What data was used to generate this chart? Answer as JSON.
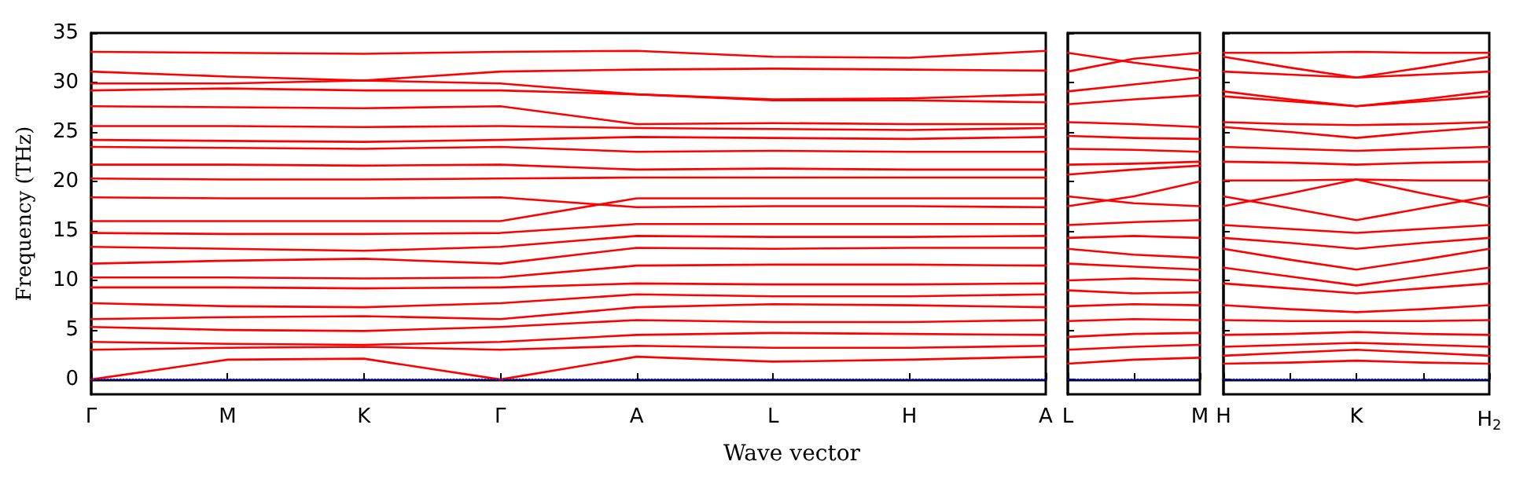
{
  "chart_data": [
    {
      "type": "line",
      "ylabel": "Frequency (THz)",
      "xlabel": "Wave vector",
      "marker": "none",
      "categories": [
        "Γ",
        "M",
        "K",
        "Γ",
        "A",
        "L",
        "H",
        "A"
      ],
      "ylim": [
        -1.5,
        35
      ],
      "yticks": [
        0,
        5,
        10,
        15,
        20,
        25,
        30,
        35
      ],
      "ref_lines": [
        {
          "axis": "y",
          "value": 0,
          "color": "#0000ff",
          "line_style": "dotted"
        }
      ],
      "series": [
        {
          "color": "#ff0000",
          "values": [
            33.1,
            33.0,
            32.9,
            33.1,
            33.2,
            32.6,
            32.5,
            33.2
          ]
        },
        {
          "color": "#ff0000",
          "values": [
            31.1,
            30.6,
            30.2,
            31.1,
            31.3,
            31.4,
            31.3,
            31.2
          ]
        },
        {
          "color": "#ff0000",
          "values": [
            29.9,
            29.9,
            30.2,
            29.9,
            28.8,
            28.3,
            28.4,
            28.8
          ]
        },
        {
          "color": "#ff0000",
          "values": [
            29.2,
            29.4,
            29.2,
            29.2,
            28.8,
            28.2,
            28.2,
            28.0
          ]
        },
        {
          "color": "#ff0000",
          "values": [
            27.6,
            27.5,
            27.4,
            27.6,
            25.8,
            25.9,
            25.8,
            25.8
          ]
        },
        {
          "color": "#ff0000",
          "values": [
            25.6,
            25.6,
            25.5,
            25.6,
            25.4,
            25.3,
            25.2,
            25.4
          ]
        },
        {
          "color": "#ff0000",
          "values": [
            24.2,
            24.1,
            24.0,
            24.2,
            24.5,
            24.4,
            24.3,
            24.5
          ]
        },
        {
          "color": "#ff0000",
          "values": [
            23.5,
            23.4,
            23.3,
            23.5,
            23.0,
            23.1,
            23.0,
            23.0
          ]
        },
        {
          "color": "#ff0000",
          "values": [
            21.7,
            21.7,
            21.6,
            21.7,
            21.2,
            21.3,
            21.2,
            21.2
          ]
        },
        {
          "color": "#ff0000",
          "values": [
            20.3,
            20.2,
            20.2,
            20.3,
            20.4,
            20.4,
            20.4,
            20.4
          ]
        },
        {
          "color": "#ff0000",
          "values": [
            18.4,
            18.3,
            18.3,
            18.4,
            17.4,
            17.5,
            17.5,
            17.4
          ]
        },
        {
          "color": "#ff0000",
          "values": [
            16.0,
            16.0,
            16.0,
            16.0,
            18.3,
            18.3,
            18.3,
            18.3
          ]
        },
        {
          "color": "#ff0000",
          "values": [
            14.8,
            14.7,
            14.7,
            14.8,
            15.7,
            15.7,
            15.7,
            15.7
          ]
        },
        {
          "color": "#ff0000",
          "values": [
            13.4,
            13.2,
            13.0,
            13.4,
            14.5,
            14.4,
            14.4,
            14.5
          ]
        },
        {
          "color": "#ff0000",
          "values": [
            11.7,
            12.0,
            12.2,
            11.7,
            13.3,
            13.2,
            13.3,
            13.3
          ]
        },
        {
          "color": "#ff0000",
          "values": [
            10.3,
            10.3,
            10.2,
            10.3,
            11.5,
            11.6,
            11.6,
            11.5
          ]
        },
        {
          "color": "#ff0000",
          "values": [
            9.3,
            9.3,
            9.2,
            9.3,
            9.7,
            9.6,
            9.6,
            9.7
          ]
        },
        {
          "color": "#ff0000",
          "values": [
            7.7,
            7.4,
            7.3,
            7.7,
            8.6,
            8.4,
            8.4,
            8.6
          ]
        },
        {
          "color": "#ff0000",
          "values": [
            6.1,
            6.3,
            6.4,
            6.1,
            7.3,
            7.6,
            7.5,
            7.3
          ]
        },
        {
          "color": "#ff0000",
          "values": [
            5.3,
            5.0,
            4.9,
            5.3,
            6.0,
            5.8,
            5.8,
            6.0
          ]
        },
        {
          "color": "#ff0000",
          "values": [
            3.8,
            3.6,
            3.5,
            3.8,
            4.5,
            4.7,
            4.6,
            4.5
          ]
        },
        {
          "color": "#ff0000",
          "values": [
            3.0,
            3.2,
            3.3,
            3.0,
            3.4,
            3.2,
            3.2,
            3.4
          ]
        },
        {
          "color": "#ff0000",
          "values": [
            0,
            2.0,
            2.1,
            0,
            2.3,
            1.8,
            2.0,
            2.3
          ]
        }
      ]
    },
    {
      "type": "line",
      "marker": "none",
      "tick_labels": "x",
      "categories": [
        "L",
        null,
        "M"
      ],
      "ylim": [
        -1.5,
        35
      ],
      "yticks": [
        0,
        5,
        10,
        15,
        20,
        25,
        30,
        35
      ],
      "ref_lines": [
        {
          "axis": "y",
          "value": 0,
          "color": "#0000ff",
          "line_style": "dotted"
        }
      ],
      "series": [
        {
          "color": "#ff0000",
          "values": [
            33.0,
            32.0,
            31.2
          ]
        },
        {
          "color": "#ff0000",
          "values": [
            31.1,
            32.4,
            33.0
          ]
        },
        {
          "color": "#ff0000",
          "values": [
            29.1,
            29.8,
            30.5
          ]
        },
        {
          "color": "#ff0000",
          "values": [
            27.8,
            28.3,
            28.7
          ]
        },
        {
          "color": "#ff0000",
          "values": [
            26.0,
            25.8,
            25.5
          ]
        },
        {
          "color": "#ff0000",
          "values": [
            24.6,
            24.4,
            24.3
          ]
        },
        {
          "color": "#ff0000",
          "values": [
            23.3,
            23.2,
            23.0
          ]
        },
        {
          "color": "#ff0000",
          "values": [
            21.7,
            21.8,
            22.0
          ]
        },
        {
          "color": "#ff0000",
          "values": [
            20.7,
            21.2,
            21.6
          ]
        },
        {
          "color": "#ff0000",
          "values": [
            17.5,
            18.5,
            20.0
          ]
        },
        {
          "color": "#ff0000",
          "values": [
            18.5,
            17.8,
            17.5
          ]
        },
        {
          "color": "#ff0000",
          "values": [
            15.6,
            15.9,
            16.1
          ]
        },
        {
          "color": "#ff0000",
          "values": [
            14.3,
            14.5,
            14.3
          ]
        },
        {
          "color": "#ff0000",
          "values": [
            13.2,
            12.6,
            12.3
          ]
        },
        {
          "color": "#ff0000",
          "values": [
            11.7,
            11.4,
            11.1
          ]
        },
        {
          "color": "#ff0000",
          "values": [
            10.0,
            10.2,
            10.0
          ]
        },
        {
          "color": "#ff0000",
          "values": [
            9.0,
            8.7,
            8.8
          ]
        },
        {
          "color": "#ff0000",
          "values": [
            7.4,
            7.6,
            7.5
          ]
        },
        {
          "color": "#ff0000",
          "values": [
            5.9,
            6.1,
            6.0
          ]
        },
        {
          "color": "#ff0000",
          "values": [
            4.3,
            4.6,
            4.7
          ]
        },
        {
          "color": "#ff0000",
          "values": [
            3.0,
            3.3,
            3.5
          ]
        },
        {
          "color": "#ff0000",
          "values": [
            1.6,
            2.0,
            2.2
          ]
        }
      ]
    },
    {
      "type": "line",
      "marker": "none",
      "tick_labels": "x",
      "categories": [
        "H",
        null,
        "K",
        null,
        "H$_{2}$"
      ],
      "ylim": [
        -1.5,
        35
      ],
      "yticks": [
        0,
        5,
        10,
        15,
        20,
        25,
        30,
        35
      ],
      "ref_lines": [
        {
          "axis": "y",
          "value": 0,
          "color": "#0000ff",
          "line_style": "dotted"
        }
      ],
      "series": [
        {
          "color": "#ff0000",
          "values": [
            33.0,
            33.0,
            33.1,
            33.0,
            33.0
          ]
        },
        {
          "color": "#ff0000",
          "values": [
            32.6,
            31.5,
            30.5,
            31.5,
            32.6
          ]
        },
        {
          "color": "#ff0000",
          "values": [
            31.1,
            30.8,
            30.5,
            30.8,
            31.1
          ]
        },
        {
          "color": "#ff0000",
          "values": [
            29.1,
            28.3,
            27.6,
            28.3,
            29.1
          ]
        },
        {
          "color": "#ff0000",
          "values": [
            28.6,
            28.1,
            27.6,
            28.1,
            28.6
          ]
        },
        {
          "color": "#ff0000",
          "values": [
            26.0,
            25.8,
            25.7,
            25.8,
            26.0
          ]
        },
        {
          "color": "#ff0000",
          "values": [
            25.5,
            25.0,
            24.4,
            25.0,
            25.5
          ]
        },
        {
          "color": "#ff0000",
          "values": [
            23.5,
            23.3,
            23.1,
            23.3,
            23.5
          ]
        },
        {
          "color": "#ff0000",
          "values": [
            22.0,
            21.9,
            21.7,
            21.9,
            22.0
          ]
        },
        {
          "color": "#ff0000",
          "values": [
            20.1,
            20.1,
            20.2,
            20.1,
            20.1
          ]
        },
        {
          "color": "#ff0000",
          "values": [
            17.5,
            18.8,
            20.2,
            18.8,
            17.5
          ]
        },
        {
          "color": "#ff0000",
          "values": [
            18.5,
            17.3,
            16.1,
            17.3,
            18.5
          ]
        },
        {
          "color": "#ff0000",
          "values": [
            15.6,
            15.2,
            14.8,
            15.2,
            15.6
          ]
        },
        {
          "color": "#ff0000",
          "values": [
            14.3,
            13.8,
            13.2,
            13.8,
            14.3
          ]
        },
        {
          "color": "#ff0000",
          "values": [
            13.2,
            12.1,
            11.1,
            12.1,
            13.2
          ]
        },
        {
          "color": "#ff0000",
          "values": [
            11.3,
            10.4,
            9.5,
            10.4,
            11.3
          ]
        },
        {
          "color": "#ff0000",
          "values": [
            9.7,
            9.2,
            8.7,
            9.2,
            9.7
          ]
        },
        {
          "color": "#ff0000",
          "values": [
            7.5,
            7.1,
            6.8,
            7.1,
            7.5
          ]
        },
        {
          "color": "#ff0000",
          "values": [
            6.0,
            5.9,
            5.9,
            5.9,
            6.0
          ]
        },
        {
          "color": "#ff0000",
          "values": [
            4.5,
            4.6,
            4.8,
            4.6,
            4.5
          ]
        },
        {
          "color": "#ff0000",
          "values": [
            3.3,
            3.5,
            3.7,
            3.5,
            3.3
          ]
        },
        {
          "color": "#ff0000",
          "values": [
            2.4,
            2.7,
            3.0,
            2.7,
            2.4
          ]
        },
        {
          "color": "#ff0000",
          "values": [
            1.6,
            1.7,
            1.9,
            1.7,
            1.6
          ]
        }
      ]
    }
  ]
}
